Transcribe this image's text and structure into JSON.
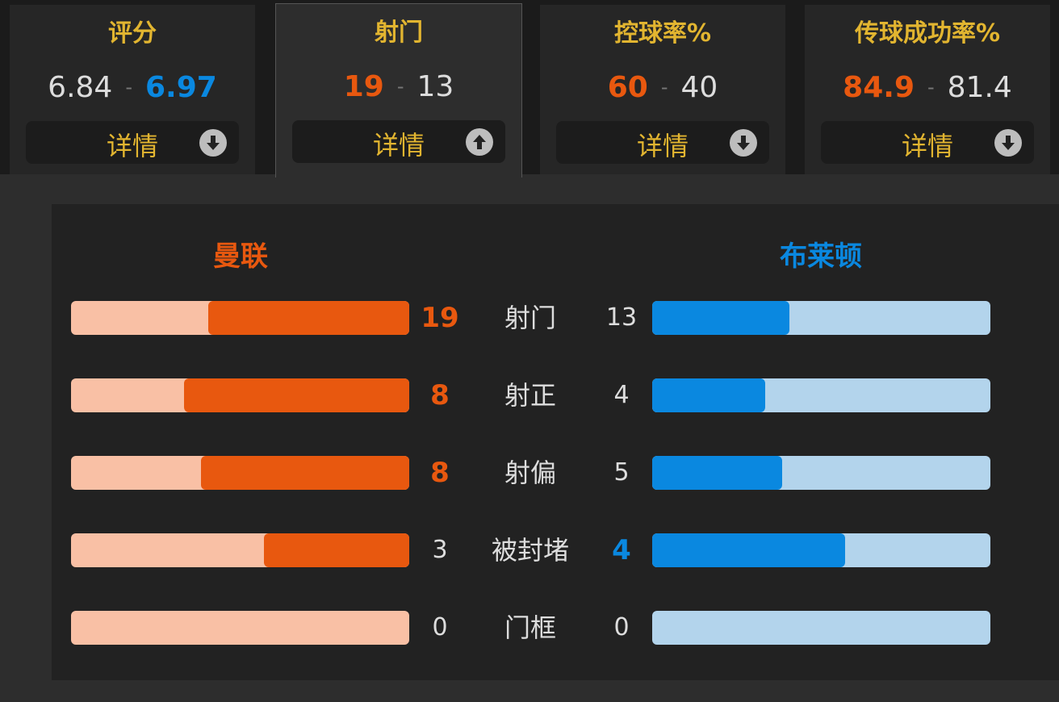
{
  "tabs": [
    {
      "title": "评分",
      "home": 6.84,
      "away": 6.97,
      "details": "详情"
    },
    {
      "title": "射门",
      "home": 19,
      "away": 13,
      "details": "详情"
    },
    {
      "title": "控球率%",
      "home": 60,
      "away": 40,
      "details": "详情"
    },
    {
      "title": "传球成功率%",
      "home": 84.9,
      "away": 81.4,
      "details": "详情"
    }
  ],
  "active_tab": 1,
  "separator": "-",
  "teams": {
    "home": "曼联",
    "away": "布莱顿"
  },
  "stats": [
    {
      "label": "射门",
      "home": 19,
      "away": 13
    },
    {
      "label": "射正",
      "home": 8,
      "away": 4
    },
    {
      "label": "射偏",
      "home": 8,
      "away": 5
    },
    {
      "label": "被封堵",
      "home": 3,
      "away": 4
    },
    {
      "label": "门框",
      "home": 0,
      "away": 0
    }
  ],
  "colors": {
    "home": "#e8580f",
    "home_light": "#f9c0a5",
    "away": "#0a88e0",
    "away_light": "#b3d4ec"
  }
}
